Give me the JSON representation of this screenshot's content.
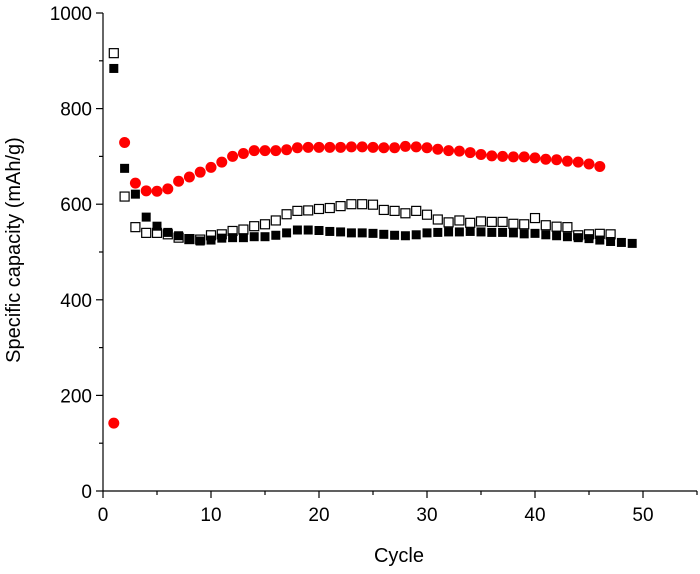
{
  "chart_data": {
    "type": "scatter",
    "title": "",
    "xlabel": "Cycle",
    "ylabel": "Specific capacity (mAh/g)",
    "xlim": [
      0,
      55
    ],
    "ylim": [
      0,
      1000
    ],
    "xticks": [
      0,
      10,
      20,
      30,
      40,
      50
    ],
    "yticks": [
      0,
      200,
      400,
      600,
      800,
      1000
    ],
    "grid": false,
    "legend": "none",
    "series": [
      {
        "marker": "circle-filled",
        "color": "#ff0000",
        "x": [
          1,
          2,
          3,
          4,
          5,
          6,
          7,
          8,
          9,
          10,
          11,
          12,
          13,
          14,
          15,
          16,
          17,
          18,
          19,
          20,
          21,
          22,
          23,
          24,
          25,
          26,
          27,
          28,
          29,
          30,
          31,
          32,
          33,
          34,
          35,
          36,
          37,
          38,
          39,
          40,
          41,
          42,
          43,
          44,
          45,
          46
        ],
        "y": [
          142,
          729,
          644,
          628,
          627,
          632,
          648,
          657,
          667,
          677,
          688,
          700,
          706,
          712,
          712,
          712,
          714,
          718,
          719,
          719,
          719,
          719,
          720,
          720,
          719,
          718,
          718,
          721,
          720,
          718,
          715,
          712,
          711,
          708,
          704,
          701,
          700,
          699,
          699,
          697,
          694,
          693,
          690,
          688,
          684,
          679
        ]
      },
      {
        "marker": "square-open",
        "color": "#000000",
        "x": [
          1,
          2,
          3,
          4,
          5,
          6,
          7,
          8,
          9,
          10,
          11,
          12,
          13,
          14,
          15,
          16,
          17,
          18,
          19,
          20,
          21,
          22,
          23,
          24,
          25,
          26,
          27,
          28,
          29,
          30,
          31,
          32,
          33,
          34,
          35,
          36,
          37,
          38,
          39,
          40,
          41,
          42,
          43,
          44,
          45,
          46,
          47
        ],
        "y": [
          916,
          616,
          552,
          540,
          540,
          537,
          530,
          527,
          526,
          535,
          537,
          544,
          547,
          554,
          558,
          566,
          579,
          586,
          587,
          590,
          592,
          596,
          600,
          600,
          599,
          588,
          586,
          581,
          586,
          578,
          568,
          562,
          566,
          561,
          564,
          563,
          563,
          559,
          558,
          571,
          556,
          553,
          552,
          535,
          537,
          538,
          537
        ]
      },
      {
        "marker": "square-filled",
        "color": "#000000",
        "x": [
          1,
          2,
          3,
          4,
          5,
          6,
          7,
          8,
          9,
          10,
          11,
          12,
          13,
          14,
          15,
          16,
          17,
          18,
          19,
          20,
          21,
          22,
          23,
          24,
          25,
          26,
          27,
          28,
          29,
          30,
          31,
          32,
          33,
          34,
          35,
          36,
          37,
          38,
          39,
          40,
          41,
          42,
          43,
          44,
          45,
          46,
          47,
          48,
          49
        ],
        "y": [
          884,
          675,
          621,
          573,
          554,
          541,
          534,
          528,
          523,
          525,
          529,
          530,
          530,
          532,
          532,
          535,
          540,
          546,
          546,
          545,
          543,
          542,
          540,
          540,
          539,
          537,
          535,
          534,
          536,
          540,
          541,
          542,
          542,
          543,
          542,
          541,
          541,
          540,
          538,
          539,
          536,
          534,
          532,
          530,
          528,
          525,
          522,
          520,
          518
        ]
      }
    ]
  }
}
